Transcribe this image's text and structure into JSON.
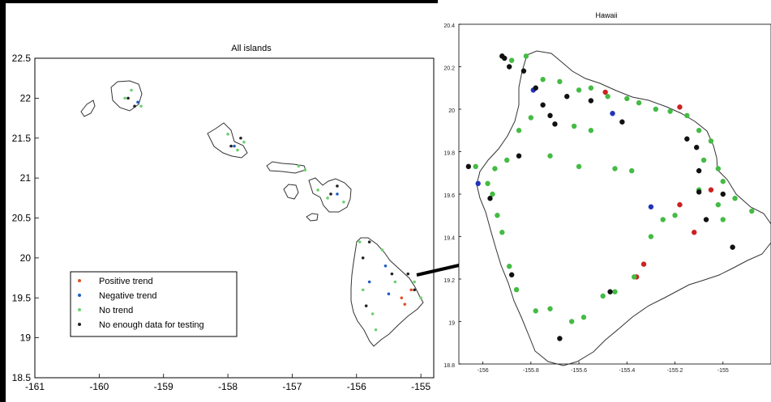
{
  "chart_data": [
    {
      "type": "scatter",
      "title": "All islands",
      "xlim": [
        -161,
        -154.8
      ],
      "ylim": [
        18.5,
        22.5
      ],
      "x_ticks": [
        "-161",
        "-160",
        "-159",
        "-158",
        "-157",
        "-156",
        "-155"
      ],
      "y_ticks": [
        "18.5",
        "19",
        "19.5",
        "20",
        "20.5",
        "21",
        "21.5",
        "22",
        "22.5"
      ],
      "legend": {
        "placement": "lower-left",
        "entries": [
          {
            "label": "Positive trend",
            "color": "#e0502a"
          },
          {
            "label": "Negative trend",
            "color": "#1f5fbf"
          },
          {
            "label": "No trend",
            "color": "#6fd06f"
          },
          {
            "label": "No enough data for testing",
            "color": "#222222"
          }
        ]
      },
      "series": [
        {
          "color": "#e0502a",
          "points": [
            [
              -155.3,
              19.5
            ],
            [
              -155.25,
              19.42
            ],
            [
              -155.15,
              19.6
            ]
          ]
        },
        {
          "color": "#1f5fbf",
          "points": [
            [
              -155.5,
              19.55
            ],
            [
              -155.55,
              19.9
            ],
            [
              -155.8,
              19.7
            ],
            [
              -159.4,
              21.95
            ],
            [
              -157.9,
              21.4
            ],
            [
              -156.3,
              20.8
            ]
          ]
        },
        {
          "color": "#6fd06f",
          "points": [
            [
              -155.9,
              19.6
            ],
            [
              -155.7,
              19.1
            ],
            [
              -155.4,
              19.7
            ],
            [
              -155.1,
              19.7
            ],
            [
              -155.0,
              19.5
            ],
            [
              -155.6,
              20.1
            ],
            [
              -155.95,
              20.2
            ],
            [
              -155.75,
              19.3
            ],
            [
              -159.5,
              22.1
            ],
            [
              -159.6,
              22.0
            ],
            [
              -159.35,
              21.9
            ],
            [
              -158.0,
              21.55
            ],
            [
              -157.85,
              21.35
            ],
            [
              -157.75,
              21.45
            ],
            [
              -156.6,
              20.85
            ],
            [
              -156.2,
              20.7
            ],
            [
              -156.45,
              20.75
            ],
            [
              -156.9,
              21.15
            ],
            [
              -156.8,
              21.1
            ]
          ]
        },
        {
          "color": "#222222",
          "points": [
            [
              -155.8,
              20.2
            ],
            [
              -155.9,
              20.0
            ],
            [
              -155.45,
              19.8
            ],
            [
              -155.2,
              19.8
            ],
            [
              -155.1,
              19.6
            ],
            [
              -155.85,
              19.4
            ],
            [
              -159.55,
              22.0
            ],
            [
              -159.45,
              21.9
            ],
            [
              -157.95,
              21.4
            ],
            [
              -157.8,
              21.5
            ],
            [
              -156.4,
              20.8
            ],
            [
              -156.3,
              20.9
            ]
          ]
        }
      ]
    },
    {
      "type": "scatter",
      "title": "Hawaii",
      "xlim": [
        -156.1,
        -154.8
      ],
      "ylim": [
        18.8,
        20.4
      ],
      "x_ticks": [
        "-156",
        "-155.8",
        "-155.6",
        "-155.4",
        "-155.2",
        "-155"
      ],
      "y_ticks": [
        "18.8",
        "19",
        "19.2",
        "19.4",
        "19.6",
        "19.8",
        "20",
        "20.2",
        "20.4"
      ],
      "series": [
        {
          "color": "#cc2222",
          "points": [
            [
              -155.49,
              20.08
            ],
            [
              -155.18,
              20.01
            ],
            [
              -155.05,
              19.62
            ],
            [
              -155.18,
              19.55
            ],
            [
              -155.12,
              19.42
            ],
            [
              -155.33,
              19.27
            ],
            [
              -155.36,
              19.21
            ]
          ]
        },
        {
          "color": "#2233bb",
          "points": [
            [
              -155.79,
              20.09
            ],
            [
              -155.46,
              19.98
            ],
            [
              -155.3,
              19.54
            ],
            [
              -156.02,
              19.65
            ]
          ]
        },
        {
          "color": "#44bb44",
          "points": [
            [
              -155.92,
              20.25
            ],
            [
              -155.88,
              20.23
            ],
            [
              -155.82,
              20.25
            ],
            [
              -155.75,
              20.14
            ],
            [
              -155.68,
              20.13
            ],
            [
              -155.6,
              20.09
            ],
            [
              -155.55,
              20.1
            ],
            [
              -155.48,
              20.06
            ],
            [
              -155.4,
              20.05
            ],
            [
              -155.35,
              20.03
            ],
            [
              -155.28,
              20.0
            ],
            [
              -155.22,
              19.99
            ],
            [
              -155.15,
              19.97
            ],
            [
              -155.1,
              19.9
            ],
            [
              -155.05,
              19.85
            ],
            [
              -155.08,
              19.76
            ],
            [
              -155.02,
              19.72
            ],
            [
              -155.0,
              19.66
            ],
            [
              -154.95,
              19.58
            ],
            [
              -154.88,
              19.52
            ],
            [
              -155.9,
              19.76
            ],
            [
              -155.95,
              19.72
            ],
            [
              -156.03,
              19.73
            ],
            [
              -155.98,
              19.65
            ],
            [
              -155.96,
              19.6
            ],
            [
              -155.94,
              19.5
            ],
            [
              -155.92,
              19.42
            ],
            [
              -155.89,
              19.26
            ],
            [
              -155.86,
              19.15
            ],
            [
              -155.78,
              19.05
            ],
            [
              -155.72,
              19.06
            ],
            [
              -155.63,
              19.0
            ],
            [
              -155.58,
              19.02
            ],
            [
              -155.5,
              19.12
            ],
            [
              -155.45,
              19.14
            ],
            [
              -155.37,
              19.21
            ],
            [
              -155.3,
              19.4
            ],
            [
              -155.25,
              19.48
            ],
            [
              -155.2,
              19.5
            ],
            [
              -155.72,
              19.78
            ],
            [
              -155.6,
              19.73
            ],
            [
              -155.45,
              19.72
            ],
            [
              -155.38,
              19.71
            ],
            [
              -155.55,
              19.9
            ],
            [
              -155.62,
              19.92
            ],
            [
              -155.1,
              19.62
            ],
            [
              -155.02,
              19.55
            ],
            [
              -155.0,
              19.48
            ],
            [
              -155.8,
              19.96
            ],
            [
              -155.85,
              19.9
            ]
          ]
        },
        {
          "color": "#111111",
          "points": [
            [
              -155.92,
              20.25
            ],
            [
              -155.89,
              20.2
            ],
            [
              -155.83,
              20.18
            ],
            [
              -155.78,
              20.1
            ],
            [
              -155.75,
              20.02
            ],
            [
              -155.72,
              19.97
            ],
            [
              -155.65,
              20.06
            ],
            [
              -155.55,
              20.04
            ],
            [
              -155.42,
              19.94
            ],
            [
              -155.15,
              19.86
            ],
            [
              -155.11,
              19.82
            ],
            [
              -155.1,
              19.71
            ],
            [
              -155.1,
              19.61
            ],
            [
              -155.0,
              19.6
            ],
            [
              -155.07,
              19.48
            ],
            [
              -156.06,
              19.73
            ],
            [
              -155.97,
              19.58
            ],
            [
              -155.88,
              19.22
            ],
            [
              -155.68,
              18.92
            ],
            [
              -155.47,
              19.14
            ],
            [
              -154.96,
              19.35
            ],
            [
              -155.85,
              19.78
            ],
            [
              -155.91,
              20.24
            ],
            [
              -155.7,
              19.93
            ]
          ]
        }
      ]
    }
  ],
  "arrow": {
    "color": "#000000"
  }
}
